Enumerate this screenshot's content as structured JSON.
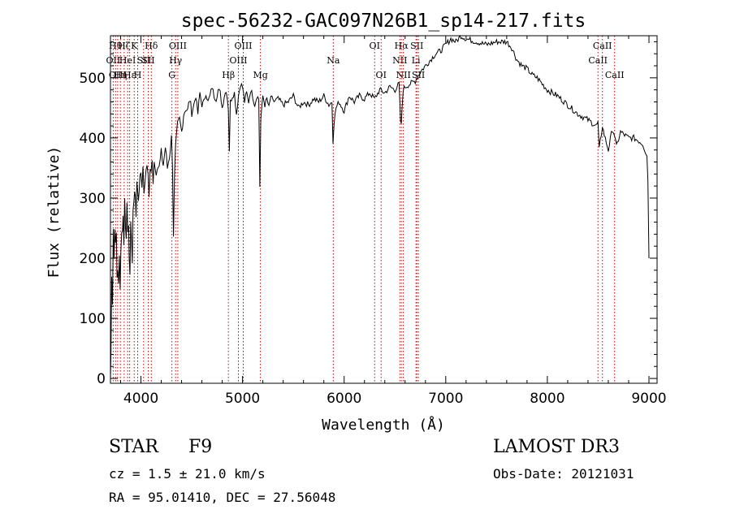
{
  "chart_data": {
    "type": "line",
    "title": "spec-56232-GAC097N26B1_sp14-217.fits",
    "xlabel": "Wavelength (Å)",
    "ylabel": "Flux (relative)",
    "xlim": [
      3700,
      9080
    ],
    "ylim": [
      -8,
      570
    ],
    "xticks": [
      4000,
      5000,
      6000,
      7000,
      8000,
      9000
    ],
    "yticks": [
      0,
      100,
      200,
      300,
      400,
      500
    ],
    "grid": false,
    "line_color": "#000000",
    "marker_color": "#cc0000",
    "series": [
      {
        "x": [
          3700,
          3705,
          3712,
          3720,
          3728,
          3735,
          3742,
          3750,
          3758,
          3765,
          3772,
          3780,
          3788,
          3795,
          3802,
          3810,
          3818,
          3825,
          3832,
          3840,
          3848,
          3855,
          3862,
          3870,
          3878,
          3885,
          3892,
          3900,
          3908,
          3915,
          3922,
          3930,
          3938,
          3945,
          3952,
          3960,
          3968,
          3975,
          3982,
          3990,
          4000,
          4010,
          4020,
          4030,
          4040,
          4050,
          4060,
          4070,
          4080,
          4090,
          4100,
          4110,
          4120,
          4130,
          4140,
          4150,
          4160,
          4180,
          4200,
          4220,
          4240,
          4260,
          4280,
          4300,
          4310,
          4320,
          4330,
          4340,
          4350,
          4360,
          4380,
          4400,
          4420,
          4440,
          4460,
          4480,
          4500,
          4520,
          4540,
          4560,
          4580,
          4600,
          4620,
          4640,
          4660,
          4680,
          4700,
          4720,
          4740,
          4760,
          4780,
          4800,
          4820,
          4840,
          4860,
          4870,
          4880,
          4900,
          4920,
          4940,
          4960,
          4980,
          5000,
          5020,
          5040,
          5060,
          5080,
          5100,
          5120,
          5140,
          5160,
          5170,
          5180,
          5200,
          5220,
          5240,
          5260,
          5280,
          5300,
          5350,
          5400,
          5450,
          5500,
          5550,
          5600,
          5650,
          5700,
          5750,
          5800,
          5850,
          5880,
          5890,
          5900,
          5920,
          5950,
          6000,
          6050,
          6100,
          6150,
          6200,
          6250,
          6300,
          6350,
          6400,
          6450,
          6500,
          6540,
          6555,
          6563,
          6570,
          6580,
          6600,
          6650,
          6700,
          6750,
          6800,
          6850,
          6900,
          6950,
          7000,
          7050,
          7100,
          7150,
          7200,
          7300,
          7400,
          7500,
          7600,
          7650,
          7700,
          7750,
          7800,
          7850,
          7900,
          7950,
          8000,
          8100,
          8200,
          8300,
          8400,
          8480,
          8498,
          8510,
          8542,
          8560,
          8600,
          8640,
          8662,
          8680,
          8720,
          8760,
          8800,
          8850,
          8900,
          8940,
          8960,
          8970,
          8980,
          8990,
          9000
        ],
        "y": [
          0,
          40,
          180,
          130,
          250,
          200,
          260,
          215,
          240,
          170,
          185,
          150,
          200,
          160,
          210,
          250,
          240,
          280,
          220,
          300,
          260,
          245,
          280,
          230,
          265,
          200,
          160,
          270,
          230,
          190,
          275,
          300,
          320,
          290,
          270,
          335,
          310,
          300,
          320,
          330,
          345,
          320,
          360,
          300,
          330,
          340,
          355,
          345,
          300,
          350,
          340,
          360,
          330,
          365,
          350,
          345,
          355,
          350,
          375,
          355,
          385,
          350,
          370,
          400,
          360,
          240,
          330,
          380,
          400,
          420,
          430,
          410,
          440,
          450,
          445,
          465,
          440,
          455,
          470,
          440,
          475,
          455,
          460,
          475,
          460,
          470,
          485,
          470,
          465,
          480,
          475,
          450,
          470,
          480,
          450,
          380,
          460,
          470,
          475,
          440,
          470,
          490,
          485,
          460,
          475,
          460,
          480,
          470,
          455,
          470,
          465,
          320,
          430,
          470,
          455,
          465,
          450,
          470,
          460,
          465,
          455,
          460,
          470,
          450,
          460,
          455,
          465,
          460,
          470,
          455,
          460,
          395,
          425,
          450,
          460,
          445,
          470,
          460,
          470,
          465,
          475,
          465,
          480,
          475,
          485,
          480,
          490,
          430,
          420,
          450,
          480,
          485,
          490,
          495,
          510,
          520,
          530,
          540,
          545,
          555,
          565,
          560,
          570,
          565,
          560,
          555,
          560,
          560,
          550,
          530,
          520,
          515,
          505,
          500,
          490,
          480,
          470,
          455,
          440,
          430,
          420,
          425,
          380,
          420,
          405,
          380,
          415,
          405,
          385,
          410,
          405,
          400,
          400,
          395,
          390,
          380,
          375,
          370,
          330,
          200
        ]
      }
    ],
    "line_markers": [
      {
        "x": 3727,
        "label": "OII",
        "row": 1
      },
      {
        "x": 3750,
        "label": "Hθ",
        "row": 0
      },
      {
        "x": 3771,
        "label": "OIII",
        "row": 2
      },
      {
        "x": 3798,
        "label": "Hη",
        "row": 2
      },
      {
        "x": 3835,
        "label": "Hζ",
        "row": 0
      },
      {
        "x": 3869,
        "label": "HeI",
        "row": 1
      },
      {
        "x": 3889,
        "label": "Hε",
        "row": 2
      },
      {
        "x": 3934,
        "label": "K",
        "row": 0
      },
      {
        "x": 3968,
        "label": "H",
        "row": 2
      },
      {
        "x": 4026,
        "label": "SII",
        "row": 1
      },
      {
        "x": 4102,
        "label": "Hδ",
        "row": 0
      },
      {
        "x": 4072,
        "label": "SII",
        "row": 1
      },
      {
        "x": 4305,
        "label": "G",
        "row": 2
      },
      {
        "x": 4341,
        "label": "Hγ",
        "row": 1
      },
      {
        "x": 4363,
        "label": "OIII",
        "row": 0
      },
      {
        "x": 4861,
        "label": "Hβ",
        "row": 2
      },
      {
        "x": 4959,
        "label": "OIII",
        "row": 1
      },
      {
        "x": 5007,
        "label": "OIII",
        "row": 0
      },
      {
        "x": 5176,
        "label": "Mg",
        "row": 2
      },
      {
        "x": 5893,
        "label": "Na",
        "row": 1
      },
      {
        "x": 6300,
        "label": "OI",
        "row": 0
      },
      {
        "x": 6364,
        "label": "OI",
        "row": 2
      },
      {
        "x": 6548,
        "label": "NII",
        "row": 1
      },
      {
        "x": 6563,
        "label": "Hα",
        "row": 0
      },
      {
        "x": 6583,
        "label": "NII",
        "row": 2
      },
      {
        "x": 6707,
        "label": "Li",
        "row": 1
      },
      {
        "x": 6716,
        "label": "SII",
        "row": 0
      },
      {
        "x": 6731,
        "label": "SII",
        "row": 2
      },
      {
        "x": 8498,
        "label": "CaII",
        "row": 1
      },
      {
        "x": 8542,
        "label": "CaII",
        "row": 0
      },
      {
        "x": 8662,
        "label": "CaII",
        "row": 2
      }
    ]
  },
  "info": {
    "class": "STAR",
    "subclass": "F9",
    "survey": "LAMOST DR3",
    "cz": "cz = 1.5 ± 21.0 km/s",
    "obs_date": "Obs-Date: 20121031",
    "radec": "RA =  95.01410, DEC =  27.56048"
  }
}
